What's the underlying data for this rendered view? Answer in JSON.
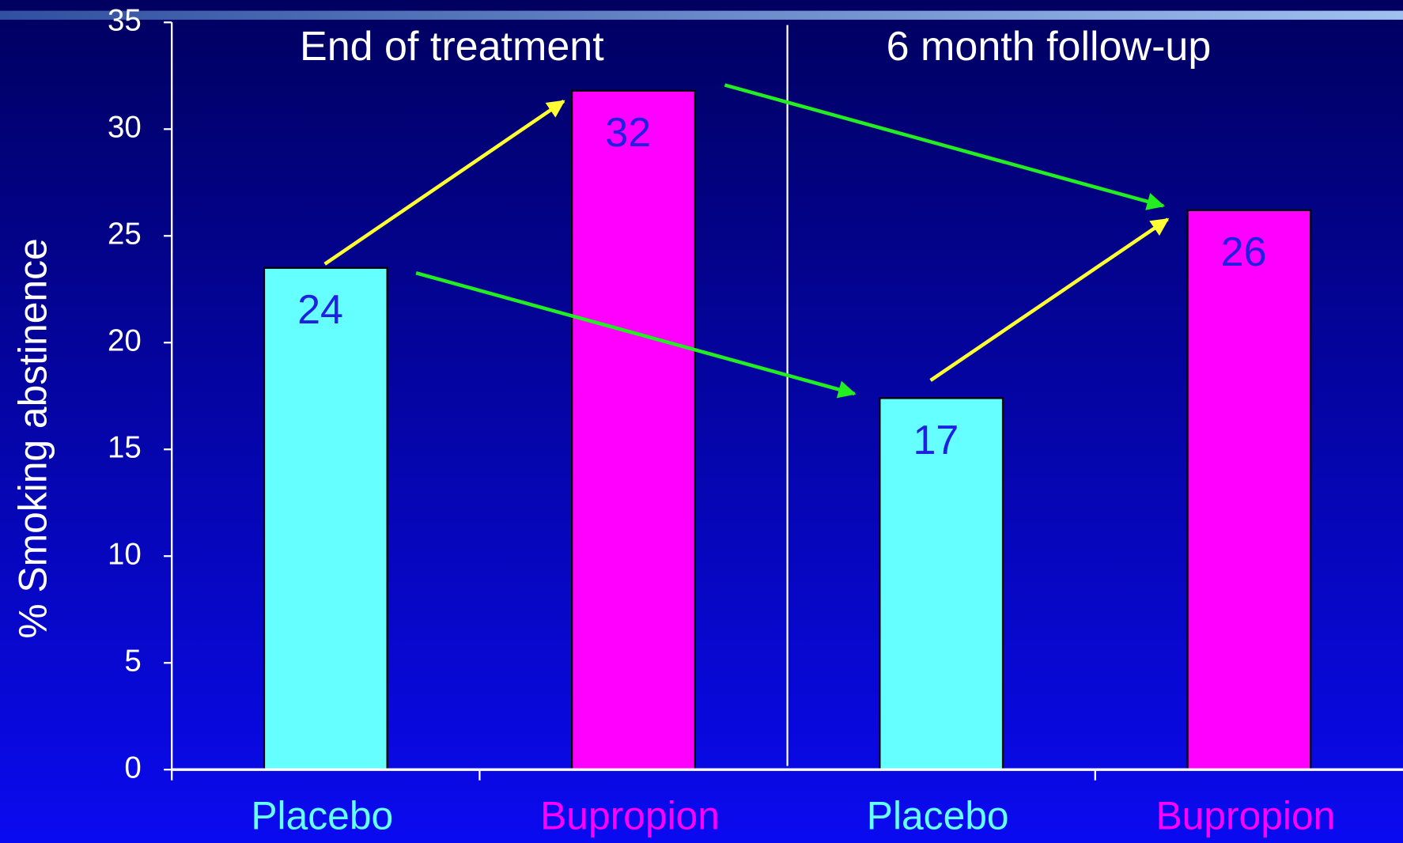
{
  "chart_data": {
    "type": "bar",
    "y_label": "% Smoking abstinence",
    "annotations": [
      "End of treatment",
      "6 month follow-up"
    ],
    "categories": [
      "Placebo",
      "Bupropion",
      "Placebo",
      "Bupropion"
    ],
    "values": [
      23.5,
      31.8,
      17.4,
      26.2
    ],
    "value_labels": [
      "24",
      "32",
      "17",
      "26"
    ],
    "colors": [
      "#66ffff",
      "#ff00ff",
      "#66ffff",
      "#ff00ff"
    ],
    "ylim": [
      0,
      35
    ],
    "yticks": [
      0,
      5,
      10,
      15,
      20,
      25,
      30,
      35
    ]
  }
}
